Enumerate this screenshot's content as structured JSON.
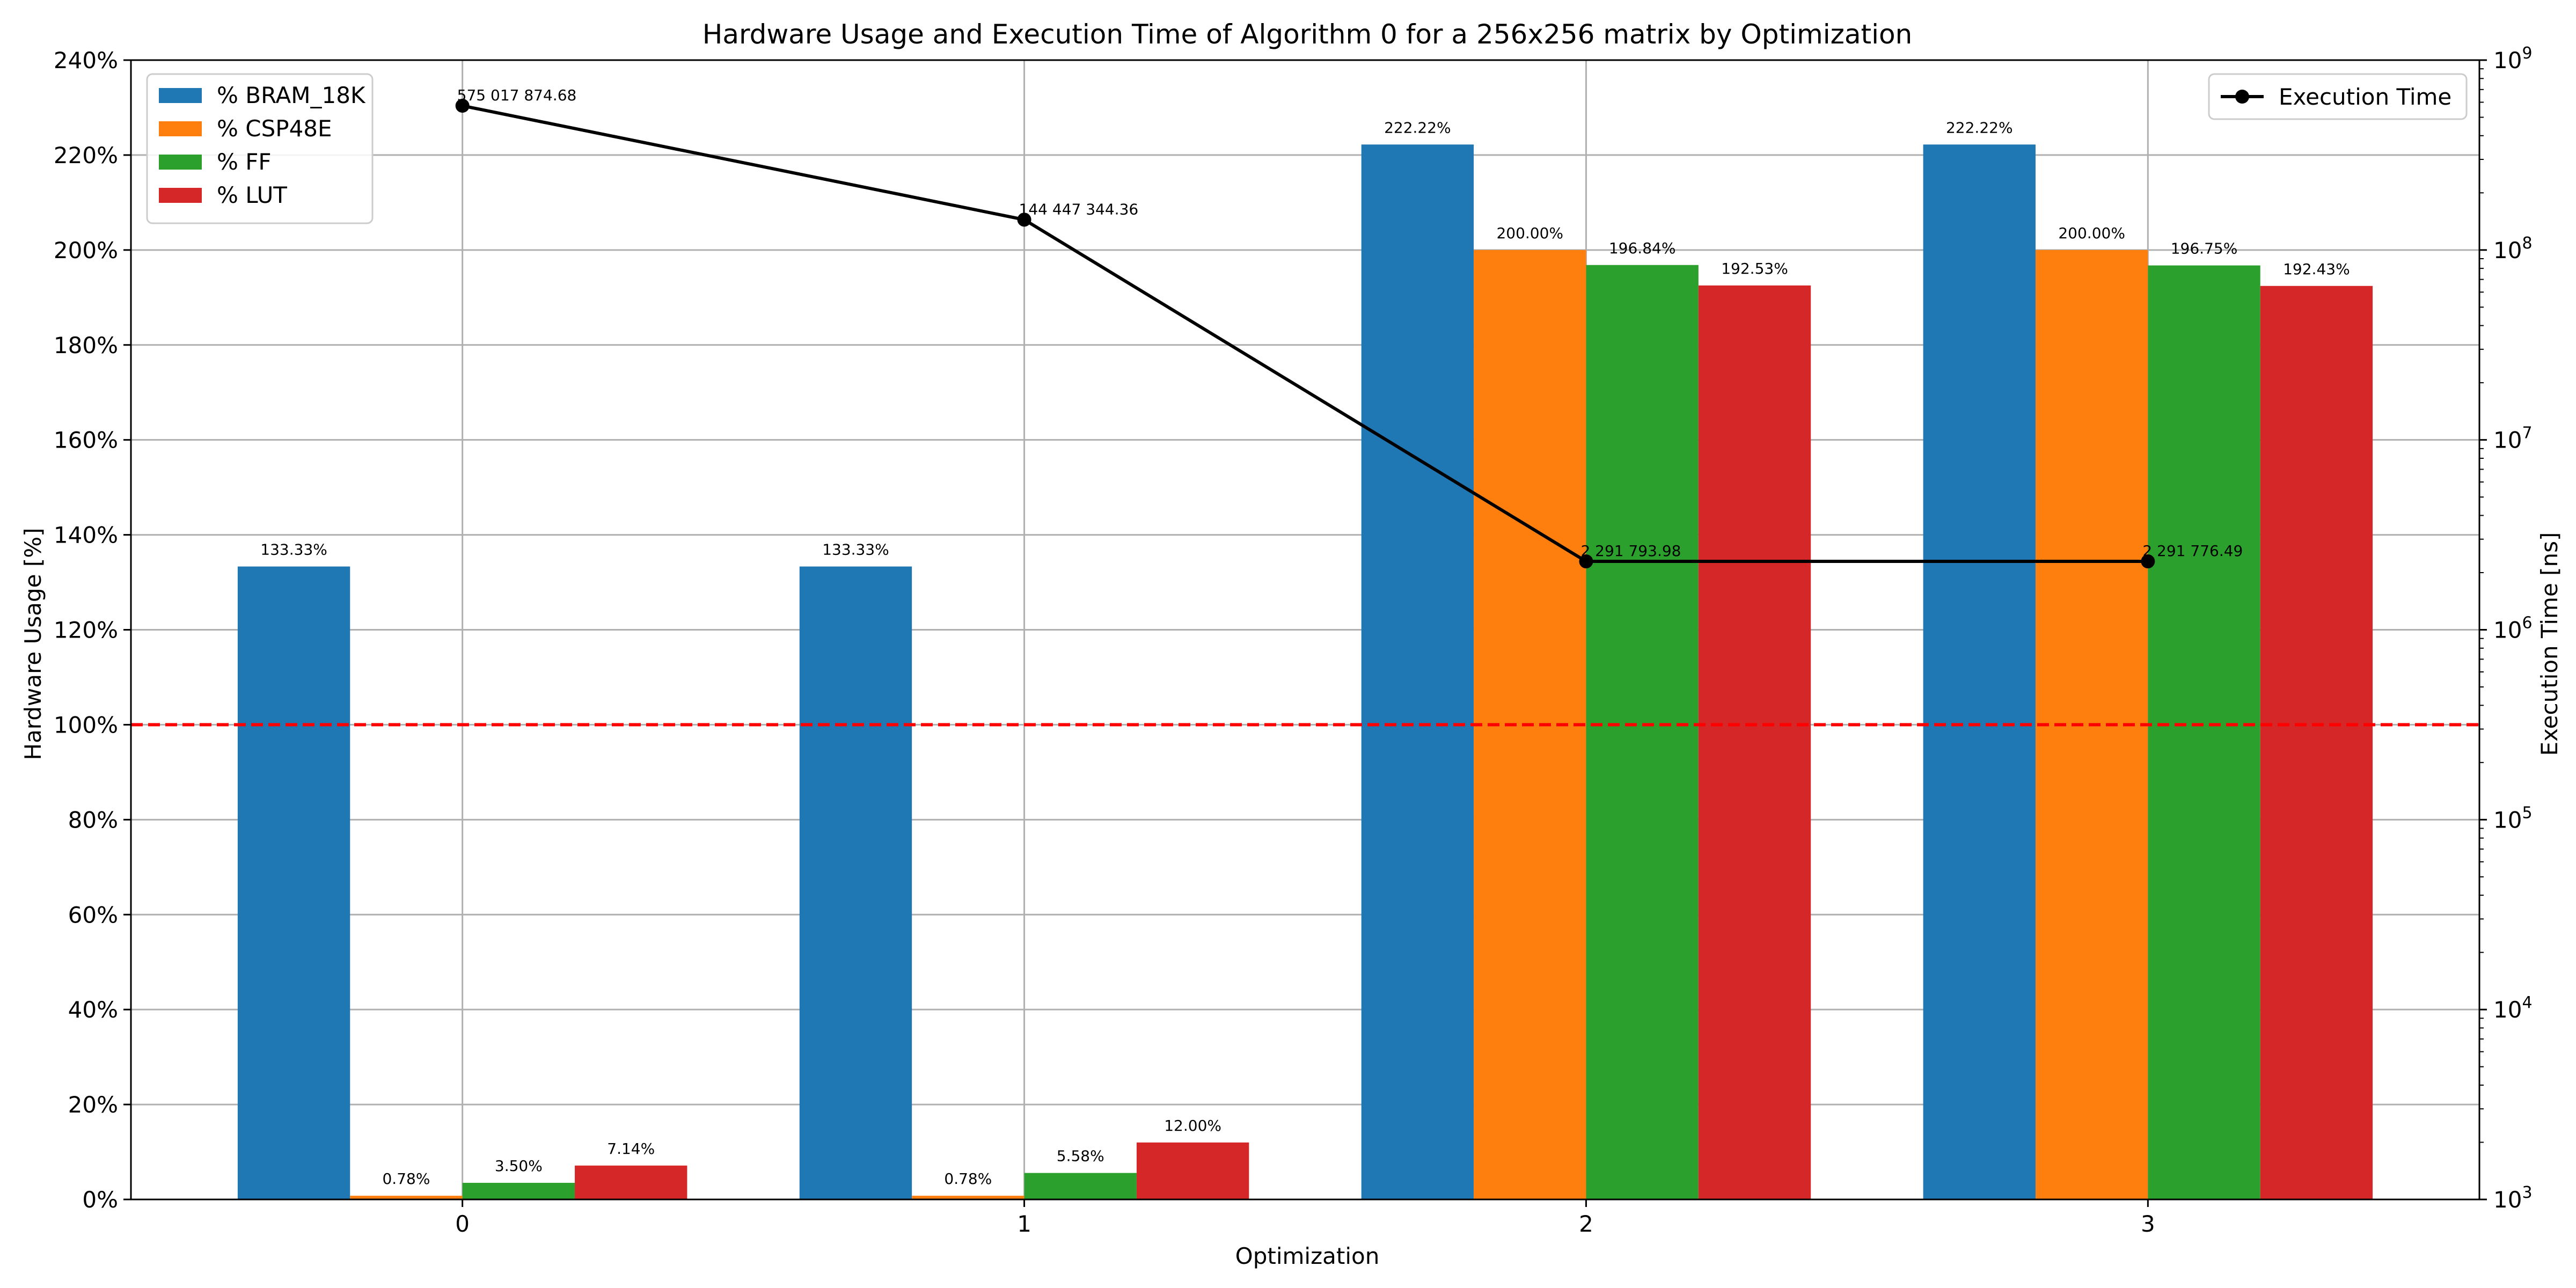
{
  "chart_data": {
    "type": "bar",
    "title": "Hardware Usage and Execution Time of Algorithm 0 for a 256x256 matrix by Optimization",
    "xlabel": "Optimization",
    "ylabel": "Hardware Usage [%]",
    "y2label": "Execution Time [ns]",
    "categories": [
      "0",
      "1",
      "2",
      "3"
    ],
    "ylim": [
      0,
      240
    ],
    "yticks": [
      "0%",
      "20%",
      "40%",
      "60%",
      "80%",
      "100%",
      "120%",
      "140%",
      "160%",
      "180%",
      "200%",
      "220%",
      "240%"
    ],
    "y2scale": "log",
    "y2lim": [
      1000,
      1000000000
    ],
    "y2ticks": [
      {
        "base": "10",
        "exp": "3"
      },
      {
        "base": "10",
        "exp": "4"
      },
      {
        "base": "10",
        "exp": "5"
      },
      {
        "base": "10",
        "exp": "6"
      },
      {
        "base": "10",
        "exp": "7"
      },
      {
        "base": "10",
        "exp": "8"
      },
      {
        "base": "10",
        "exp": "9"
      }
    ],
    "grid": true,
    "reference_line": {
      "value": 100,
      "color": "#ff0000",
      "style": "dashed"
    },
    "series": [
      {
        "name": "% BRAM_18K",
        "color": "#1f77b4",
        "values": [
          133.33,
          133.33,
          222.22,
          222.22
        ],
        "labels": [
          "133.33%",
          "133.33%",
          "222.22%",
          "222.22%"
        ]
      },
      {
        "name": "% CSP48E",
        "color": "#ff7f0e",
        "values": [
          0.78,
          0.78,
          200.0,
          200.0
        ],
        "labels": [
          "0.78%",
          "0.78%",
          "200.00%",
          "200.00%"
        ]
      },
      {
        "name": "% FF",
        "color": "#2ca02c",
        "values": [
          3.5,
          5.58,
          196.84,
          196.75
        ],
        "labels": [
          "3.50%",
          "5.58%",
          "196.84%",
          "196.75%"
        ]
      },
      {
        "name": "% LUT",
        "color": "#d62728",
        "values": [
          7.14,
          12.0,
          192.53,
          192.43
        ],
        "labels": [
          "7.14%",
          "12.00%",
          "192.53%",
          "192.43%"
        ]
      }
    ],
    "line_series": {
      "name": "Execution Time",
      "color": "#000000",
      "values": [
        575017874.68,
        144447344.36,
        2291793.98,
        2291776.49
      ],
      "labels": [
        "575 017 874.68",
        "144 447 344.36",
        "2 291 793.98",
        "2 291 776.49"
      ]
    },
    "legend_placement": "top-left",
    "line_legend_placement": "top-right"
  }
}
